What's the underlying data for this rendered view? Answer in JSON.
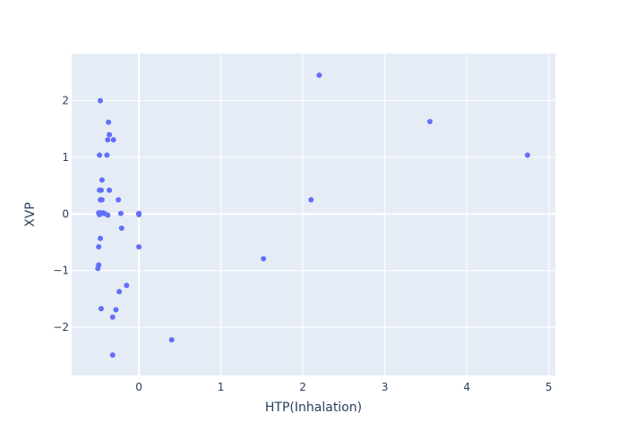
{
  "chart_data": {
    "type": "scatter",
    "title": "",
    "xlabel": "HTP(Inhalation)",
    "ylabel": "XVP",
    "xlim": [
      -0.82,
      5.08
    ],
    "ylim": [
      -2.85,
      2.83
    ],
    "x_ticks": [
      0,
      1,
      2,
      3,
      4,
      5
    ],
    "y_ticks": [
      -2,
      -1,
      0,
      1,
      2
    ],
    "x_tick_labels": [
      "0",
      "1",
      "2",
      "3",
      "4",
      "5"
    ],
    "y_tick_labels": [
      "−2",
      "−1",
      "0",
      "1",
      "2"
    ],
    "grid": true,
    "legend": "none",
    "colors": {
      "marker": "#636efa",
      "plot_bg": "#e5ecf6",
      "grid": "#ffffff",
      "text": "#2a3f5f"
    },
    "series": [
      {
        "x": [
          -0.47,
          -0.37,
          -0.36,
          -0.38,
          -0.31,
          -0.48,
          -0.39,
          -0.45,
          -0.48,
          -0.46,
          -0.36,
          -0.47,
          -0.45,
          -0.25,
          -0.49,
          -0.47,
          -0.44,
          -0.42,
          -0.48,
          -0.38,
          -0.22,
          -0.47,
          0.0,
          0.0,
          0.0,
          -0.21,
          -0.47,
          -0.49,
          0.0,
          -0.49,
          -0.5,
          -0.15,
          -0.24,
          -0.46,
          -0.28,
          -0.32,
          0.4,
          -0.32,
          1.52,
          2.1,
          2.2,
          3.55,
          4.74,
          0.0
        ],
        "y": [
          2.0,
          1.62,
          1.4,
          1.31,
          1.31,
          1.04,
          1.04,
          0.6,
          0.42,
          0.42,
          0.42,
          0.25,
          0.25,
          0.25,
          0.02,
          0.02,
          0.02,
          0.01,
          -0.01,
          -0.02,
          0.01,
          0.0,
          0.0,
          0.0,
          0.01,
          -0.25,
          -0.43,
          -0.58,
          -0.58,
          -0.9,
          -0.96,
          -1.26,
          -1.37,
          -1.67,
          -1.69,
          -1.82,
          -2.22,
          -2.49,
          -0.79,
          0.25,
          2.45,
          1.63,
          1.04,
          -0.01
        ]
      }
    ]
  }
}
